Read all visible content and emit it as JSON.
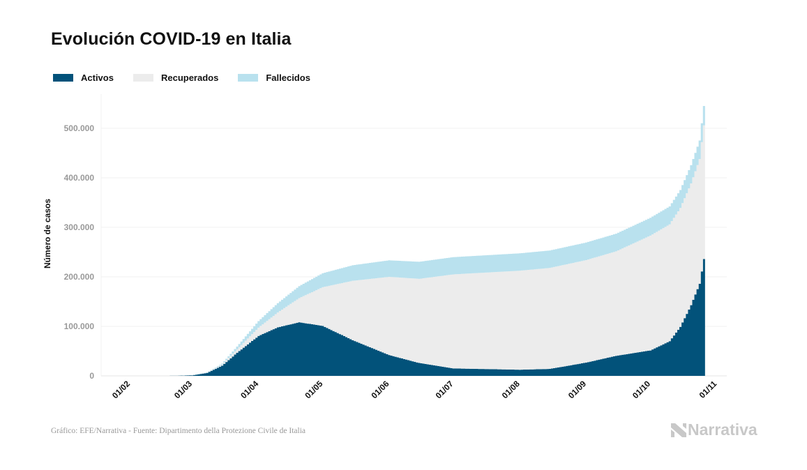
{
  "title": "Evolución COVID-19 en Italia",
  "footer": "Gráfico: EFE/Narrativa - Fuente: Dipartimento della Protezione Civile de Italia",
  "logo_text": "Narrativa",
  "chart_data": {
    "type": "area",
    "stacked": true,
    "title": "Evolución COVID-19 en Italia",
    "xlabel": "",
    "ylabel": "Número de casos",
    "ylim": [
      0,
      570000
    ],
    "xlim": [
      "2020-02-01",
      "2020-11-01"
    ],
    "yticks": [
      0,
      100000,
      200000,
      300000,
      400000,
      500000
    ],
    "ytick_labels": [
      "0",
      "100.000",
      "200.000",
      "300.000",
      "400.000",
      "500.000"
    ],
    "xticks": [
      "2020-02-01",
      "2020-03-01",
      "2020-04-01",
      "2020-05-01",
      "2020-06-01",
      "2020-07-01",
      "2020-08-01",
      "2020-09-01",
      "2020-10-01",
      "2020-11-01"
    ],
    "xtick_labels": [
      "01/02",
      "01/03",
      "01/04",
      "01/05",
      "01/06",
      "01/07",
      "01/08",
      "01/09",
      "01/10",
      "01/11"
    ],
    "grid": true,
    "legend_position": "top-left",
    "dates": [
      "2020-02-01",
      "2020-02-22",
      "2020-03-01",
      "2020-03-08",
      "2020-03-15",
      "2020-03-22",
      "2020-04-01",
      "2020-04-10",
      "2020-04-20",
      "2020-05-01",
      "2020-05-15",
      "2020-06-01",
      "2020-06-15",
      "2020-07-01",
      "2020-08-01",
      "2020-08-15",
      "2020-09-01",
      "2020-09-15",
      "2020-10-01",
      "2020-10-10",
      "2020-10-15",
      "2020-10-20",
      "2020-10-24",
      "2020-10-26"
    ],
    "series": [
      {
        "name": "Activos",
        "color": "#02527a",
        "values": [
          0,
          100,
          1100,
          6000,
          20600,
          46600,
          80600,
          98000,
          108200,
          100900,
          72000,
          42000,
          26000,
          15000,
          12400,
          14000,
          26800,
          40500,
          51300,
          70000,
          99000,
          142700,
          186000,
          236000
        ]
      },
      {
        "name": "Recuperados",
        "color": "#ececec",
        "values": [
          0,
          0,
          80,
          600,
          2300,
          7000,
          16800,
          30000,
          48900,
          78200,
          120000,
          158000,
          170000,
          190000,
          200000,
          204000,
          207000,
          211000,
          232000,
          236000,
          240000,
          246000,
          252000,
          270000
        ]
      },
      {
        "name": "Fallecidos",
        "color": "#b9e1ee",
        "values": [
          0,
          0,
          30,
          370,
          1800,
          5500,
          13200,
          18800,
          24100,
          28200,
          31400,
          33400,
          34400,
          34800,
          35100,
          35200,
          35500,
          35600,
          35900,
          36200,
          36400,
          36800,
          37300,
          39000
        ]
      }
    ]
  }
}
